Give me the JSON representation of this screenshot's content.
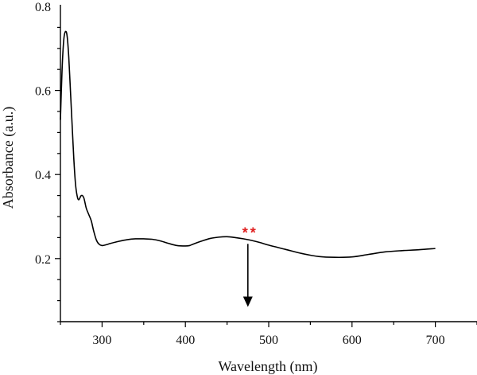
{
  "chart_data": {
    "type": "line",
    "xlabel": "Wavelength (nm)",
    "ylabel": "Absorbance (a.u.)",
    "xlim": [
      250,
      750
    ],
    "ylim": [
      0.05,
      0.8
    ],
    "x_ticks": [
      300,
      400,
      500,
      600,
      700
    ],
    "y_ticks": [
      0.2,
      0.4,
      0.6,
      0.8
    ],
    "grid": false,
    "series": [
      {
        "color": "#000000",
        "x": [
          250,
          252,
          254,
          256,
          258,
          260,
          262,
          264,
          266,
          268,
          270,
          272,
          275,
          278,
          281,
          284,
          287,
          290,
          293,
          296,
          300,
          305,
          310,
          320,
          330,
          340,
          350,
          360,
          370,
          380,
          390,
          400,
          405,
          410,
          420,
          430,
          440,
          450,
          460,
          470,
          480,
          490,
          500,
          520,
          540,
          560,
          580,
          600,
          620,
          640,
          660,
          680,
          700
        ],
        "values": [
          0.53,
          0.65,
          0.72,
          0.74,
          0.73,
          0.68,
          0.6,
          0.52,
          0.44,
          0.38,
          0.35,
          0.34,
          0.35,
          0.345,
          0.32,
          0.305,
          0.29,
          0.265,
          0.245,
          0.235,
          0.231,
          0.233,
          0.236,
          0.241,
          0.245,
          0.247,
          0.247,
          0.246,
          0.242,
          0.236,
          0.231,
          0.23,
          0.231,
          0.235,
          0.242,
          0.248,
          0.251,
          0.252,
          0.25,
          0.247,
          0.243,
          0.238,
          0.232,
          0.222,
          0.212,
          0.205,
          0.203,
          0.204,
          0.21,
          0.216,
          0.219,
          0.221,
          0.224
        ]
      }
    ],
    "annotations": [
      {
        "text": "**",
        "color": "#e02020",
        "x": 475,
        "y": 0.265
      }
    ],
    "arrow": {
      "x": 475,
      "y_start": 0.235,
      "y_end": 0.085,
      "color": "#000000"
    }
  }
}
